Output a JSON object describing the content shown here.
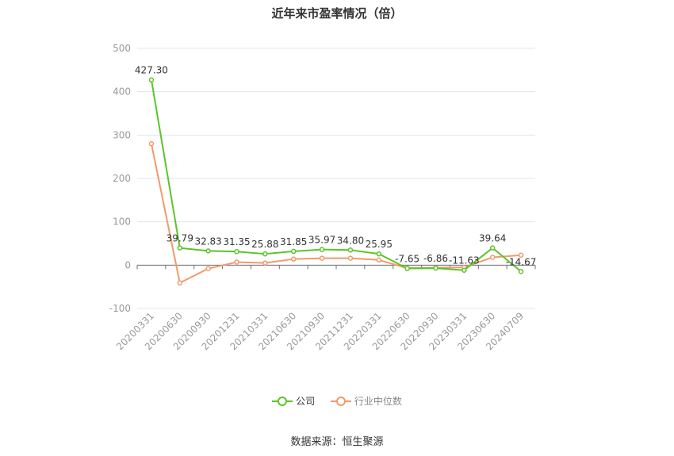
{
  "chart_data": {
    "type": "line",
    "title": "近年来市盈率情况（倍）",
    "categories": [
      "20200331",
      "20200630",
      "20200930",
      "20201231",
      "20210331",
      "20210630",
      "20210930",
      "20211231",
      "20220331",
      "20220630",
      "20220930",
      "20230331",
      "20230630",
      "20240709"
    ],
    "ylim": [
      -100,
      500
    ],
    "yticks": [
      -100,
      0,
      100,
      200,
      300,
      400,
      500
    ],
    "grid": true,
    "legend_position": "bottom",
    "series": [
      {
        "name": "公司",
        "color": "#5cc42b",
        "values": [
          427.3,
          39.79,
          32.83,
          31.35,
          25.88,
          31.85,
          35.97,
          34.8,
          25.95,
          -7.65,
          -6.86,
          -11.63,
          39.64,
          -14.67
        ],
        "labels": [
          "427.30",
          "39.79",
          "32.83",
          "31.35",
          "25.88",
          "31.85",
          "35.97",
          "34.80",
          "25.95",
          "-7.65",
          "-6.86",
          "-11.63",
          "39.64",
          "-14.67"
        ]
      },
      {
        "name": "行业中位数",
        "color": "#f29a6b",
        "values": [
          280,
          -41,
          -8,
          7,
          5,
          14,
          16,
          16,
          12,
          -7,
          -6,
          -5,
          18,
          23
        ]
      }
    ]
  },
  "source": "数据来源：恒生聚源"
}
